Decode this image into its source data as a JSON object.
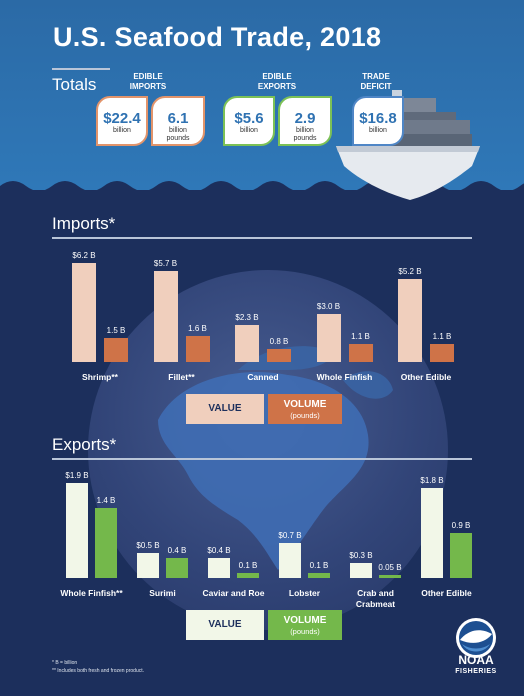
{
  "title": "U.S. Seafood Trade, 2018",
  "totals": {
    "label": "Totals",
    "edible_imports": {
      "heading": "EDIBLE\nIMPORTS",
      "value_amount": "$22.4",
      "value_unit": "billion",
      "volume_amount": "6.1",
      "volume_unit": "billion\npounds"
    },
    "edible_exports": {
      "heading": "EDIBLE\nEXPORTS",
      "value_amount": "$5.6",
      "value_unit": "billion",
      "volume_amount": "2.9",
      "volume_unit": "billion\npounds"
    },
    "trade_deficit": {
      "heading": "TRADE\nDEFICIT",
      "value_amount": "$16.8",
      "value_unit": "billion"
    }
  },
  "imports_label": "Imports*",
  "exports_label": "Exports*",
  "legend": {
    "value": "VALUE",
    "volume": "VOLUME",
    "volume_sub": "(pounds)"
  },
  "notes": {
    "note1": "*  B = billion",
    "note2": "** Includes both fresh and frozen product."
  },
  "logo": {
    "name": "NOAA",
    "sub": "FISHERIES"
  },
  "colors": {
    "import_value": "#f0cfbd",
    "import_volume": "#cf7348",
    "export_value": "#f2f7e8",
    "export_volume": "#74b84b"
  },
  "chart_data": [
    {
      "type": "bar",
      "title": "Imports*",
      "categories": [
        "Shrimp**",
        "Fillet**",
        "Canned",
        "Whole Finfish",
        "Other Edible"
      ],
      "series": [
        {
          "name": "VALUE",
          "values": [
            6.2,
            5.7,
            2.3,
            3.0,
            5.2
          ],
          "labels": [
            "$6.2 B",
            "$5.7 B",
            "$2.3 B",
            "$3.0 B",
            "$5.2 B"
          ]
        },
        {
          "name": "VOLUME (pounds)",
          "values": [
            1.5,
            1.6,
            0.8,
            1.1,
            1.1
          ],
          "labels": [
            "1.5 B",
            "1.6 B",
            "0.8 B",
            "1.1 B",
            "1.1 B"
          ]
        }
      ],
      "ylim": [
        0,
        6.5
      ]
    },
    {
      "type": "bar",
      "title": "Exports*",
      "categories": [
        "Whole Finfish**",
        "Surimi",
        "Caviar and Roe",
        "Lobster",
        "Crab and\nCrabmeat",
        "Other Edible"
      ],
      "series": [
        {
          "name": "VALUE",
          "values": [
            1.9,
            0.5,
            0.4,
            0.7,
            0.3,
            1.8
          ],
          "labels": [
            "$1.9 B",
            "$0.5 B",
            "$0.4 B",
            "$0.7 B",
            "$0.3 B",
            "$1.8 B"
          ]
        },
        {
          "name": "VOLUME (pounds)",
          "values": [
            1.4,
            0.4,
            0.1,
            0.1,
            0.05,
            0.9
          ],
          "labels": [
            "1.4 B",
            "0.4 B",
            "0.1 B",
            "0.1 B",
            "0.05 B",
            "0.9 B"
          ]
        }
      ],
      "ylim": [
        0,
        2.0
      ]
    }
  ]
}
